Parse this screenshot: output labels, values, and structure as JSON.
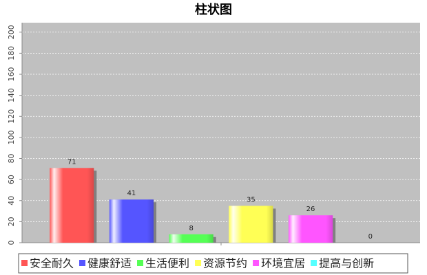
{
  "chart_data": {
    "type": "bar",
    "title": "柱状图",
    "categories": [
      null
    ],
    "series": [
      {
        "name": "安全耐久",
        "color": "#ff5555",
        "values": [
          71
        ]
      },
      {
        "name": "健康舒适",
        "color": "#5555ff",
        "values": [
          41
        ]
      },
      {
        "name": "生活便利",
        "color": "#55ff55",
        "values": [
          8
        ]
      },
      {
        "name": "资源节约",
        "color": "#ffff55",
        "values": [
          35
        ]
      },
      {
        "name": "环境宜居",
        "color": "#ff55ff",
        "values": [
          26
        ]
      },
      {
        "name": "提高与创新",
        "color": "#55ffff",
        "values": [
          0
        ]
      }
    ],
    "ylim": [
      0,
      209
    ],
    "yticks": [
      0,
      20,
      40,
      60,
      80,
      100,
      120,
      140,
      160,
      180,
      200
    ],
    "grid": true,
    "legend": "bottom"
  }
}
